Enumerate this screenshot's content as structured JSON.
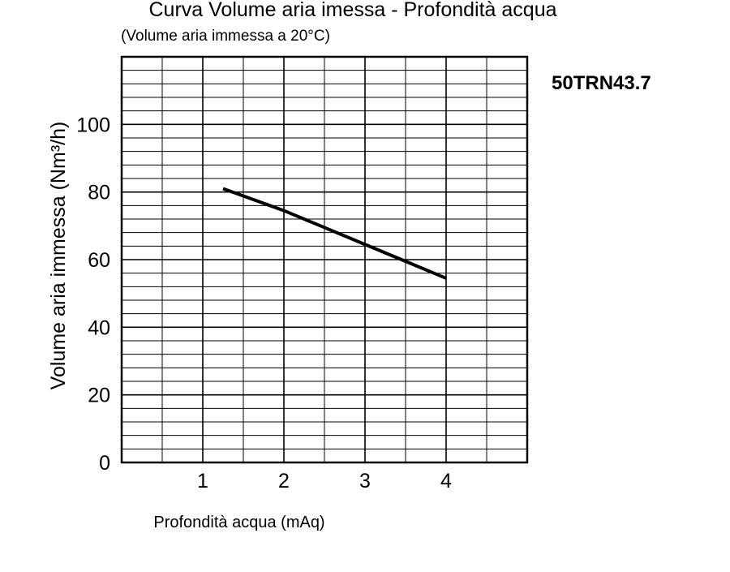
{
  "chart_data": {
    "type": "line",
    "title": "Curva Volume aria imessa - Profondità acqua",
    "subtitle": "(Volume aria immessa a 20°C)",
    "model_label": "50TRN43.7",
    "xlabel": "Profondità acqua (mAq)",
    "ylabel": "Volume aria immessa (Nm³/h)",
    "xlim": [
      0,
      5
    ],
    "ylim": [
      0,
      120
    ],
    "x_ticks": [
      1,
      2,
      3,
      4
    ],
    "y_ticks": [
      0,
      20,
      40,
      60,
      80,
      100
    ],
    "x_minor_step": 0.5,
    "y_minor_step": 4,
    "grid": true,
    "series": [
      {
        "x": [
          1.25,
          2.0,
          3.0,
          4.0
        ],
        "y": [
          81,
          74.5,
          64.5,
          54.5
        ]
      }
    ],
    "line_color": "#000000",
    "grid_color": "#000000"
  }
}
